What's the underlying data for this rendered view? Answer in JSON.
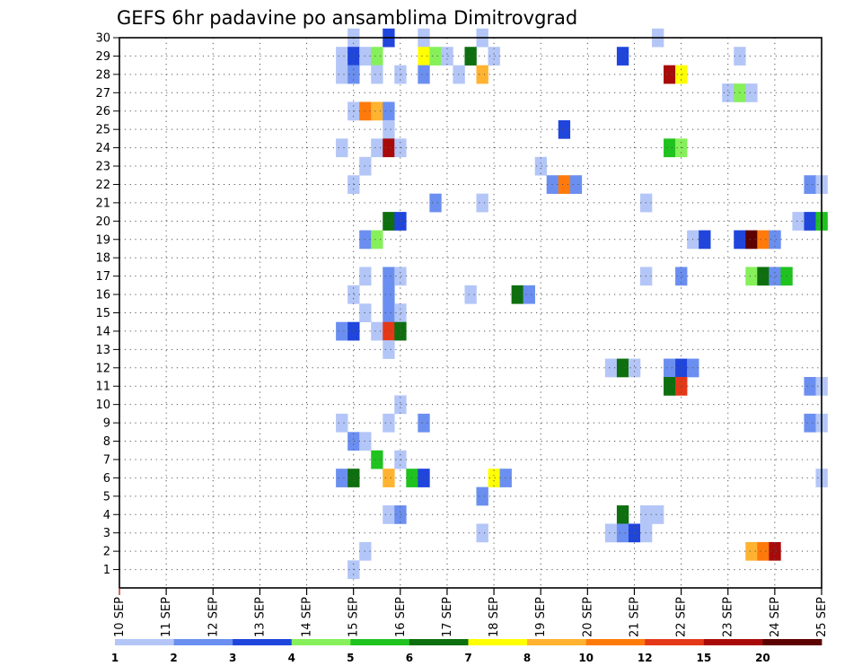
{
  "chart_data": {
    "type": "heatmap",
    "title": "GEFS 6hr padavine po ansamblima Dimitrovgrad",
    "xlabel": "",
    "ylabel": "",
    "x_tick_labels": [
      "10 SEP",
      "11 SEP",
      "12 SEP",
      "13 SEP",
      "14 SEP",
      "15 SEP",
      "16 SEP",
      "17 SEP",
      "18 SEP",
      "19 SEP",
      "20 SEP",
      "21 SEP",
      "22 SEP",
      "23 SEP",
      "24 SEP",
      "25 SEP"
    ],
    "y_tick_labels": [
      "1",
      "2",
      "3",
      "4",
      "5",
      "6",
      "7",
      "8",
      "9",
      "10",
      "11",
      "12",
      "13",
      "14",
      "15",
      "16",
      "17",
      "18",
      "19",
      "20",
      "21",
      "22",
      "23",
      "24",
      "25",
      "26",
      "27",
      "28",
      "29",
      "30"
    ],
    "x_range_days": [
      10,
      25
    ],
    "y_range_members": [
      0,
      30
    ],
    "grid": true,
    "colorbar": {
      "position": "bottom",
      "levels": [
        "1",
        "2",
        "3",
        "4",
        "5",
        "6",
        "7",
        "8",
        "10",
        "12",
        "15",
        "20"
      ],
      "colors": [
        "#b3c6f7",
        "#6b8ff0",
        "#1f45dc",
        "#86f05a",
        "#1fc21f",
        "#0e6f0e",
        "#ffff00",
        "#ffb330",
        "#ff7a0a",
        "#e43818",
        "#a80a0a",
        "#5c0000"
      ]
    },
    "cells": [
      {
        "member": 30,
        "day": 15.0,
        "level": 0
      },
      {
        "member": 30,
        "day": 15.75,
        "level": 2
      },
      {
        "member": 30,
        "day": 16.5,
        "level": 0
      },
      {
        "member": 30,
        "day": 17.75,
        "level": 0
      },
      {
        "member": 30,
        "day": 21.5,
        "level": 0
      },
      {
        "member": 29,
        "day": 14.75,
        "level": 0
      },
      {
        "member": 29,
        "day": 15.0,
        "level": 2
      },
      {
        "member": 29,
        "day": 15.25,
        "level": 0
      },
      {
        "member": 29,
        "day": 15.5,
        "level": 3
      },
      {
        "member": 29,
        "day": 16.5,
        "level": 6
      },
      {
        "member": 29,
        "day": 16.75,
        "level": 3
      },
      {
        "member": 29,
        "day": 17.0,
        "level": 0
      },
      {
        "member": 29,
        "day": 17.5,
        "level": 5
      },
      {
        "member": 29,
        "day": 18.0,
        "level": 0
      },
      {
        "member": 29,
        "day": 20.75,
        "level": 2
      },
      {
        "member": 29,
        "day": 23.25,
        "level": 0
      },
      {
        "member": 28,
        "day": 14.75,
        "level": 0
      },
      {
        "member": 28,
        "day": 15.0,
        "level": 1
      },
      {
        "member": 28,
        "day": 15.5,
        "level": 0
      },
      {
        "member": 28,
        "day": 16.0,
        "level": 0
      },
      {
        "member": 28,
        "day": 16.5,
        "level": 1
      },
      {
        "member": 28,
        "day": 17.25,
        "level": 0
      },
      {
        "member": 28,
        "day": 17.75,
        "level": 7
      },
      {
        "member": 28,
        "day": 21.75,
        "level": 10
      },
      {
        "member": 28,
        "day": 22.0,
        "level": 6
      },
      {
        "member": 27,
        "day": 23.0,
        "level": 0
      },
      {
        "member": 27,
        "day": 23.25,
        "level": 3
      },
      {
        "member": 27,
        "day": 23.5,
        "level": 0
      },
      {
        "member": 26,
        "day": 15.0,
        "level": 0
      },
      {
        "member": 26,
        "day": 15.25,
        "level": 8
      },
      {
        "member": 26,
        "day": 15.5,
        "level": 7
      },
      {
        "member": 26,
        "day": 15.75,
        "level": 1
      },
      {
        "member": 25,
        "day": 15.75,
        "level": 0
      },
      {
        "member": 25,
        "day": 19.5,
        "level": 2
      },
      {
        "member": 24,
        "day": 14.75,
        "level": 0
      },
      {
        "member": 24,
        "day": 15.5,
        "level": 0
      },
      {
        "member": 24,
        "day": 15.75,
        "level": 10
      },
      {
        "member": 24,
        "day": 16.0,
        "level": 0
      },
      {
        "member": 24,
        "day": 21.75,
        "level": 4
      },
      {
        "member": 24,
        "day": 22.0,
        "level": 3
      },
      {
        "member": 23,
        "day": 15.25,
        "level": 0
      },
      {
        "member": 23,
        "day": 19.0,
        "level": 0
      },
      {
        "member": 22,
        "day": 15.0,
        "level": 0
      },
      {
        "member": 22,
        "day": 19.25,
        "level": 1
      },
      {
        "member": 22,
        "day": 19.5,
        "level": 8
      },
      {
        "member": 22,
        "day": 19.75,
        "level": 1
      },
      {
        "member": 22,
        "day": 24.75,
        "level": 1
      },
      {
        "member": 22,
        "day": 25.0,
        "level": 0
      },
      {
        "member": 21,
        "day": 16.75,
        "level": 1
      },
      {
        "member": 21,
        "day": 17.75,
        "level": 0
      },
      {
        "member": 21,
        "day": 21.25,
        "level": 0
      },
      {
        "member": 20,
        "day": 15.75,
        "level": 5
      },
      {
        "member": 20,
        "day": 16.0,
        "level": 2
      },
      {
        "member": 20,
        "day": 24.5,
        "level": 0
      },
      {
        "member": 20,
        "day": 24.75,
        "level": 2
      },
      {
        "member": 20,
        "day": 25.0,
        "level": 4
      },
      {
        "member": 19,
        "day": 15.25,
        "level": 1
      },
      {
        "member": 19,
        "day": 15.5,
        "level": 3
      },
      {
        "member": 19,
        "day": 22.25,
        "level": 0
      },
      {
        "member": 19,
        "day": 22.5,
        "level": 2
      },
      {
        "member": 19,
        "day": 23.25,
        "level": 2
      },
      {
        "member": 19,
        "day": 23.5,
        "level": 11
      },
      {
        "member": 19,
        "day": 23.75,
        "level": 8
      },
      {
        "member": 19,
        "day": 24.0,
        "level": 1
      },
      {
        "member": 17,
        "day": 15.25,
        "level": 0
      },
      {
        "member": 17,
        "day": 15.75,
        "level": 1
      },
      {
        "member": 17,
        "day": 16.0,
        "level": 0
      },
      {
        "member": 17,
        "day": 21.25,
        "level": 0
      },
      {
        "member": 17,
        "day": 22.0,
        "level": 1
      },
      {
        "member": 17,
        "day": 23.5,
        "level": 3
      },
      {
        "member": 17,
        "day": 23.75,
        "level": 5
      },
      {
        "member": 17,
        "day": 24.0,
        "level": 1
      },
      {
        "member": 17,
        "day": 24.25,
        "level": 4
      },
      {
        "member": 16,
        "day": 15.0,
        "level": 0
      },
      {
        "member": 16,
        "day": 15.75,
        "level": 1
      },
      {
        "member": 16,
        "day": 17.5,
        "level": 0
      },
      {
        "member": 16,
        "day": 18.5,
        "level": 5
      },
      {
        "member": 16,
        "day": 18.75,
        "level": 1
      },
      {
        "member": 15,
        "day": 15.25,
        "level": 0
      },
      {
        "member": 15,
        "day": 15.75,
        "level": 1
      },
      {
        "member": 15,
        "day": 16.0,
        "level": 0
      },
      {
        "member": 14,
        "day": 14.75,
        "level": 1
      },
      {
        "member": 14,
        "day": 15.0,
        "level": 2
      },
      {
        "member": 14,
        "day": 15.5,
        "level": 0
      },
      {
        "member": 14,
        "day": 15.75,
        "level": 9
      },
      {
        "member": 14,
        "day": 16.0,
        "level": 5
      },
      {
        "member": 13,
        "day": 15.75,
        "level": 0
      },
      {
        "member": 12,
        "day": 20.5,
        "level": 0
      },
      {
        "member": 12,
        "day": 20.75,
        "level": 5
      },
      {
        "member": 12,
        "day": 21.0,
        "level": 0
      },
      {
        "member": 12,
        "day": 21.75,
        "level": 1
      },
      {
        "member": 12,
        "day": 22.0,
        "level": 2
      },
      {
        "member": 12,
        "day": 22.25,
        "level": 1
      },
      {
        "member": 11,
        "day": 21.75,
        "level": 5
      },
      {
        "member": 11,
        "day": 22.0,
        "level": 9
      },
      {
        "member": 11,
        "day": 24.75,
        "level": 1
      },
      {
        "member": 11,
        "day": 25.0,
        "level": 0
      },
      {
        "member": 10,
        "day": 16.0,
        "level": 0
      },
      {
        "member": 9,
        "day": 14.75,
        "level": 0
      },
      {
        "member": 9,
        "day": 15.75,
        "level": 0
      },
      {
        "member": 9,
        "day": 16.5,
        "level": 1
      },
      {
        "member": 9,
        "day": 24.75,
        "level": 1
      },
      {
        "member": 9,
        "day": 25.0,
        "level": 0
      },
      {
        "member": 8,
        "day": 15.0,
        "level": 1
      },
      {
        "member": 8,
        "day": 15.25,
        "level": 0
      },
      {
        "member": 7,
        "day": 15.5,
        "level": 4
      },
      {
        "member": 7,
        "day": 16.0,
        "level": 0
      },
      {
        "member": 6,
        "day": 14.75,
        "level": 1
      },
      {
        "member": 6,
        "day": 15.0,
        "level": 5
      },
      {
        "member": 6,
        "day": 15.75,
        "level": 7
      },
      {
        "member": 6,
        "day": 16.25,
        "level": 4
      },
      {
        "member": 6,
        "day": 16.5,
        "level": 2
      },
      {
        "member": 6,
        "day": 18.0,
        "level": 6
      },
      {
        "member": 6,
        "day": 18.25,
        "level": 1
      },
      {
        "member": 6,
        "day": 25.0,
        "level": 0
      },
      {
        "member": 5,
        "day": 17.75,
        "level": 1
      },
      {
        "member": 4,
        "day": 15.75,
        "level": 0
      },
      {
        "member": 4,
        "day": 16.0,
        "level": 1
      },
      {
        "member": 4,
        "day": 20.75,
        "level": 5
      },
      {
        "member": 4,
        "day": 21.25,
        "level": 0
      },
      {
        "member": 4,
        "day": 21.5,
        "level": 0
      },
      {
        "member": 3,
        "day": 17.75,
        "level": 0
      },
      {
        "member": 3,
        "day": 20.5,
        "level": 0
      },
      {
        "member": 3,
        "day": 20.75,
        "level": 1
      },
      {
        "member": 3,
        "day": 21.0,
        "level": 2
      },
      {
        "member": 3,
        "day": 21.25,
        "level": 0
      },
      {
        "member": 2,
        "day": 15.25,
        "level": 0
      },
      {
        "member": 2,
        "day": 23.5,
        "level": 7
      },
      {
        "member": 2,
        "day": 23.75,
        "level": 8
      },
      {
        "member": 2,
        "day": 24.0,
        "level": 10
      },
      {
        "member": 1,
        "day": 15.0,
        "level": 0
      }
    ]
  }
}
